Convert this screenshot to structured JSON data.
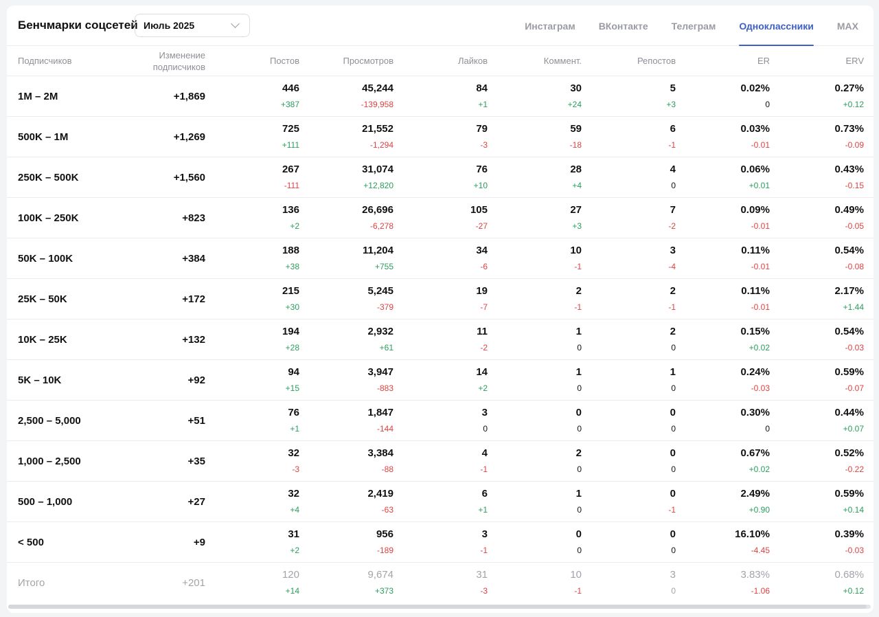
{
  "header": {
    "title": "Бенчмарки соцсетей",
    "period": "Июль 2025",
    "tabs": [
      {
        "label": "Инстаграм",
        "active": false
      },
      {
        "label": "ВКонтакте",
        "active": false
      },
      {
        "label": "Телеграм",
        "active": false
      },
      {
        "label": "Одноклассники",
        "active": true
      },
      {
        "label": "MAX",
        "active": false
      }
    ]
  },
  "columns": {
    "subscribers": "Подписчиков",
    "sub_change": "Изменение подписчиков",
    "posts": "Постов",
    "views": "Просмотров",
    "likes": "Лайков",
    "comments": "Коммент.",
    "reposts": "Репостов",
    "er": "ER",
    "erv": "ERV"
  },
  "rows": [
    {
      "label": "1M – 2M",
      "change": "+1,869",
      "posts": [
        "446",
        "+387"
      ],
      "views": [
        "45,244",
        "-139,958"
      ],
      "likes": [
        "84",
        "+1"
      ],
      "comments": [
        "30",
        "+24"
      ],
      "reposts": [
        "5",
        "+3"
      ],
      "er": [
        "0.02%",
        "0"
      ],
      "erv": [
        "0.27%",
        "+0.12"
      ]
    },
    {
      "label": "500K – 1M",
      "change": "+1,269",
      "posts": [
        "725",
        "+111"
      ],
      "views": [
        "21,552",
        "-1,294"
      ],
      "likes": [
        "79",
        "-3"
      ],
      "comments": [
        "59",
        "-18"
      ],
      "reposts": [
        "6",
        "-1"
      ],
      "er": [
        "0.03%",
        "-0.01"
      ],
      "erv": [
        "0.73%",
        "-0.09"
      ]
    },
    {
      "label": "250K – 500K",
      "change": "+1,560",
      "posts": [
        "267",
        "-111"
      ],
      "views": [
        "31,074",
        "+12,820"
      ],
      "likes": [
        "76",
        "+10"
      ],
      "comments": [
        "28",
        "+4"
      ],
      "reposts": [
        "4",
        "0"
      ],
      "er": [
        "0.06%",
        "+0.01"
      ],
      "erv": [
        "0.43%",
        "-0.15"
      ]
    },
    {
      "label": "100K – 250K",
      "change": "+823",
      "posts": [
        "136",
        "+2"
      ],
      "views": [
        "26,696",
        "-6,278"
      ],
      "likes": [
        "105",
        "-27"
      ],
      "comments": [
        "27",
        "+3"
      ],
      "reposts": [
        "7",
        "-2"
      ],
      "er": [
        "0.09%",
        "-0.01"
      ],
      "erv": [
        "0.49%",
        "-0.05"
      ]
    },
    {
      "label": "50K – 100K",
      "change": "+384",
      "posts": [
        "188",
        "+38"
      ],
      "views": [
        "11,204",
        "+755"
      ],
      "likes": [
        "34",
        "-6"
      ],
      "comments": [
        "10",
        "-1"
      ],
      "reposts": [
        "3",
        "-4"
      ],
      "er": [
        "0.11%",
        "-0.01"
      ],
      "erv": [
        "0.54%",
        "-0.08"
      ]
    },
    {
      "label": "25K – 50K",
      "change": "+172",
      "posts": [
        "215",
        "+30"
      ],
      "views": [
        "5,245",
        "-379"
      ],
      "likes": [
        "19",
        "-7"
      ],
      "comments": [
        "2",
        "-1"
      ],
      "reposts": [
        "2",
        "-1"
      ],
      "er": [
        "0.11%",
        "-0.01"
      ],
      "erv": [
        "2.17%",
        "+1.44"
      ]
    },
    {
      "label": "10K – 25K",
      "change": "+132",
      "posts": [
        "194",
        "+28"
      ],
      "views": [
        "2,932",
        "+61"
      ],
      "likes": [
        "11",
        "-2"
      ],
      "comments": [
        "1",
        "0"
      ],
      "reposts": [
        "2",
        "0"
      ],
      "er": [
        "0.15%",
        "+0.02"
      ],
      "erv": [
        "0.54%",
        "-0.03"
      ]
    },
    {
      "label": "5K – 10K",
      "change": "+92",
      "posts": [
        "94",
        "+15"
      ],
      "views": [
        "3,947",
        "-883"
      ],
      "likes": [
        "14",
        "+2"
      ],
      "comments": [
        "1",
        "0"
      ],
      "reposts": [
        "1",
        "0"
      ],
      "er": [
        "0.24%",
        "-0.03"
      ],
      "erv": [
        "0.59%",
        "-0.07"
      ]
    },
    {
      "label": "2,500 – 5,000",
      "change": "+51",
      "posts": [
        "76",
        "+1"
      ],
      "views": [
        "1,847",
        "-144"
      ],
      "likes": [
        "3",
        "0"
      ],
      "comments": [
        "0",
        "0"
      ],
      "reposts": [
        "0",
        "0"
      ],
      "er": [
        "0.30%",
        "0"
      ],
      "erv": [
        "0.44%",
        "+0.07"
      ]
    },
    {
      "label": "1,000 – 2,500",
      "change": "+35",
      "posts": [
        "32",
        "-3"
      ],
      "views": [
        "3,384",
        "-88"
      ],
      "likes": [
        "4",
        "-1"
      ],
      "comments": [
        "2",
        "0"
      ],
      "reposts": [
        "0",
        "0"
      ],
      "er": [
        "0.67%",
        "+0.02"
      ],
      "erv": [
        "0.52%",
        "-0.22"
      ]
    },
    {
      "label": "500 – 1,000",
      "change": "+27",
      "posts": [
        "32",
        "+4"
      ],
      "views": [
        "2,419",
        "-63"
      ],
      "likes": [
        "6",
        "+1"
      ],
      "comments": [
        "1",
        "0"
      ],
      "reposts": [
        "0",
        "-1"
      ],
      "er": [
        "2.49%",
        "+0.90"
      ],
      "erv": [
        "0.59%",
        "+0.14"
      ]
    },
    {
      "label": "< 500",
      "change": "+9",
      "posts": [
        "31",
        "+2"
      ],
      "views": [
        "956",
        "-189"
      ],
      "likes": [
        "3",
        "-1"
      ],
      "comments": [
        "0",
        "0"
      ],
      "reposts": [
        "0",
        "0"
      ],
      "er": [
        "16.10%",
        "-4.45"
      ],
      "erv": [
        "0.39%",
        "-0.03"
      ]
    }
  ],
  "total": {
    "label": "Итого",
    "change": "+201",
    "posts": [
      "120",
      "+14"
    ],
    "views": [
      "9,674",
      "+373"
    ],
    "likes": [
      "31",
      "-3"
    ],
    "comments": [
      "10",
      "-1"
    ],
    "reposts": [
      "3",
      "0"
    ],
    "er": [
      "3.83%",
      "-1.06"
    ],
    "erv": [
      "0.68%",
      "+0.12"
    ]
  },
  "colors": {
    "accent": "#3e5fc7",
    "positive": "#2a9d5c",
    "negative": "#e04141",
    "muted": "#9a9ca3"
  }
}
